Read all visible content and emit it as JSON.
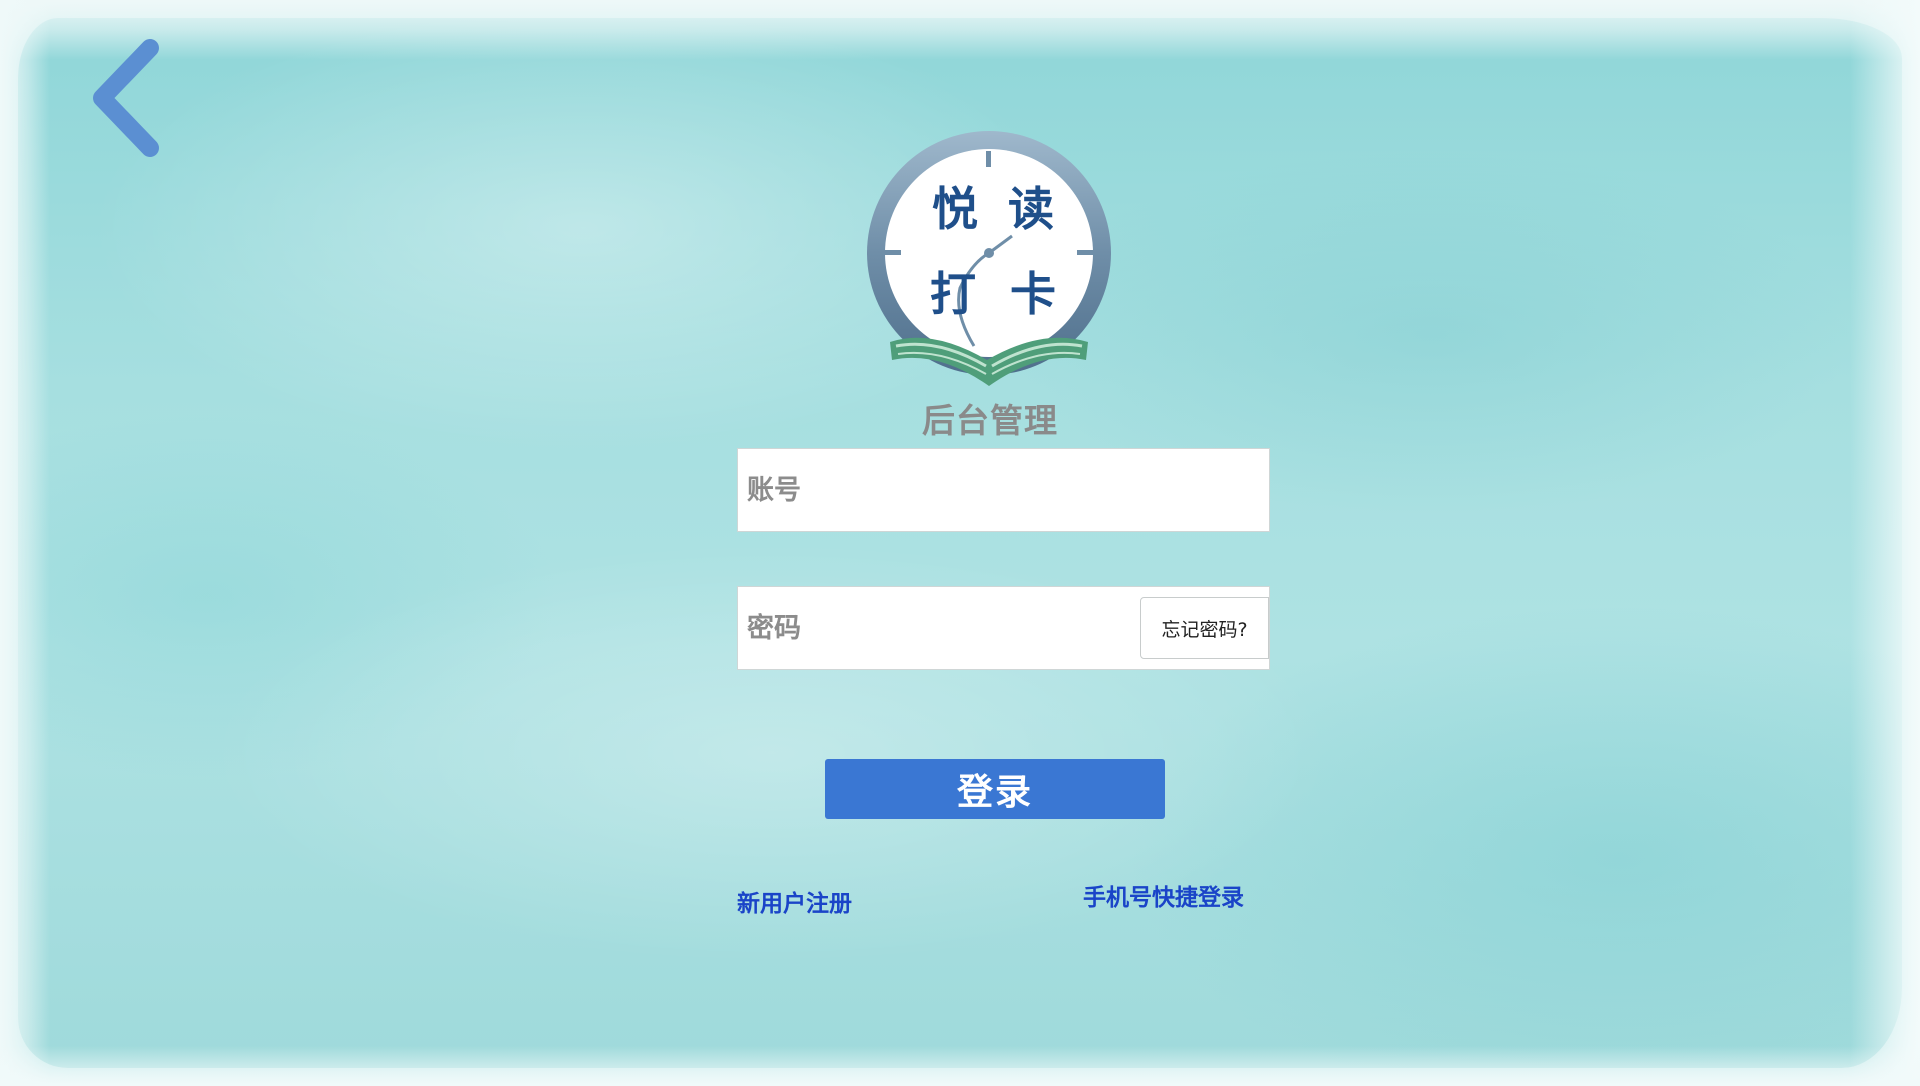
{
  "header": {
    "back_icon": "chevron-left-icon",
    "logo": {
      "text_line1_a": "悦",
      "text_line1_b": "读",
      "text_line2_a": "打",
      "text_line2_b": "卡",
      "icon": "clock-book-logo-icon"
    },
    "subtitle": "后台管理"
  },
  "form": {
    "account": {
      "placeholder": "账号",
      "value": ""
    },
    "password": {
      "placeholder": "密码",
      "value": ""
    },
    "forgot_label": "忘记密码?",
    "login_label": "登录"
  },
  "footer": {
    "register_label": "新用户注册",
    "phone_login_label": "手机号快捷登录"
  },
  "colors": {
    "background": "#a6dfe0",
    "primary": "#3a77d3",
    "link": "#1a44c8",
    "subtitle": "#8a8a8a",
    "back_icon": "#5b8fd2",
    "logo_ring": "#6f8ea8",
    "logo_text": "#1f4f8a",
    "logo_book": "#4f9e7a"
  }
}
